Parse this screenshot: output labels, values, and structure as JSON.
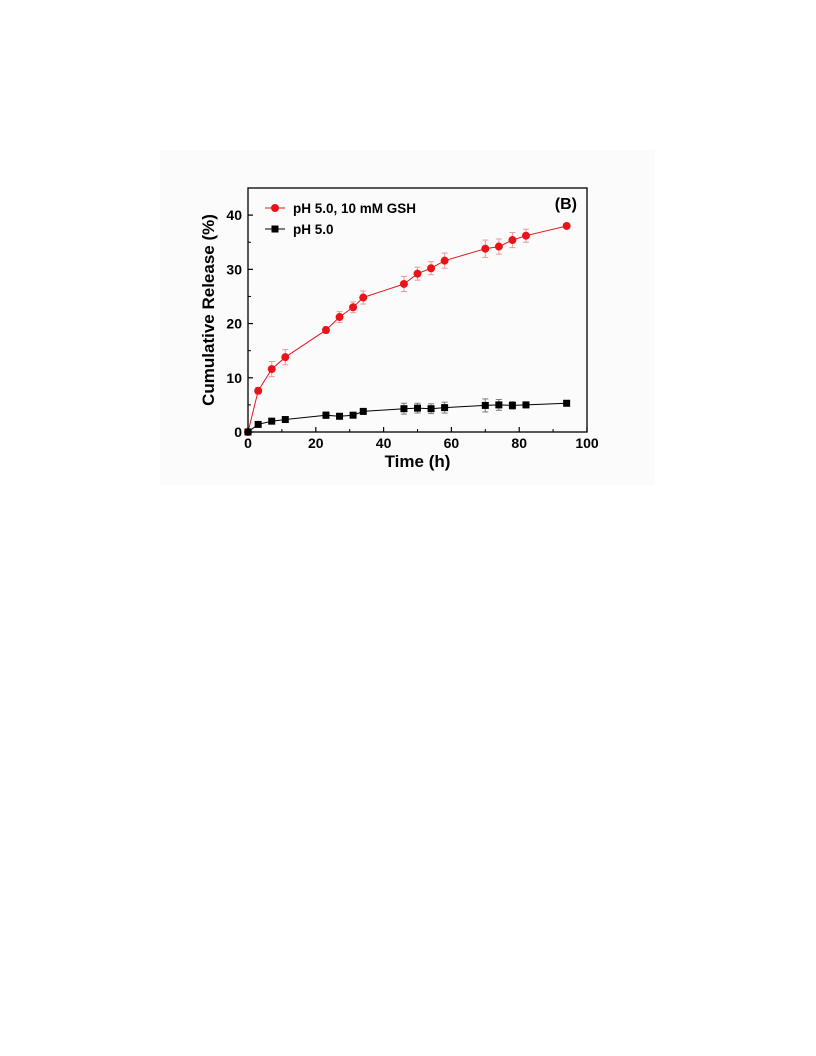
{
  "chart_data": {
    "type": "scatter",
    "panel_label": "(B)",
    "xlabel": "Time (h)",
    "ylabel": "Cumulative Release (%)",
    "xlim": [
      0,
      100
    ],
    "ylim": [
      0,
      45
    ],
    "xticks": [
      0,
      20,
      40,
      60,
      80,
      100
    ],
    "yticks": [
      0,
      10,
      20,
      30,
      40
    ],
    "grid": false,
    "legend_position": "top-left",
    "series": [
      {
        "name": "pH 5.0, 10 mM GSH",
        "color": "#e8141a",
        "marker": "circle",
        "x": [
          0,
          3,
          7,
          11,
          23,
          27,
          31,
          34,
          46,
          50,
          54,
          58,
          70,
          74,
          78,
          82,
          94
        ],
        "y": [
          0,
          7.6,
          11.6,
          13.8,
          18.8,
          21.2,
          23.0,
          24.8,
          27.3,
          29.2,
          30.2,
          31.6,
          33.8,
          34.2,
          35.4,
          36.2,
          38.0
        ],
        "err": [
          0,
          0.6,
          1.4,
          1.4,
          0.6,
          1.0,
          1.0,
          1.2,
          1.4,
          1.2,
          1.2,
          1.4,
          1.6,
          1.4,
          1.4,
          1.2,
          0.4
        ]
      },
      {
        "name": "pH 5.0",
        "color": "#000000",
        "marker": "square",
        "x": [
          0,
          3,
          7,
          11,
          23,
          27,
          31,
          34,
          46,
          50,
          54,
          58,
          70,
          74,
          78,
          82,
          94
        ],
        "y": [
          0,
          1.4,
          2.0,
          2.3,
          3.1,
          2.9,
          3.1,
          3.8,
          4.3,
          4.4,
          4.3,
          4.5,
          4.9,
          5.0,
          4.9,
          5.0,
          5.3
        ],
        "err": [
          0,
          0.3,
          0.4,
          0.4,
          0.6,
          0.4,
          0.5,
          0.5,
          1.0,
          0.9,
          0.9,
          1.0,
          1.2,
          1.0,
          0.7,
          0.5,
          0.4
        ]
      }
    ]
  }
}
